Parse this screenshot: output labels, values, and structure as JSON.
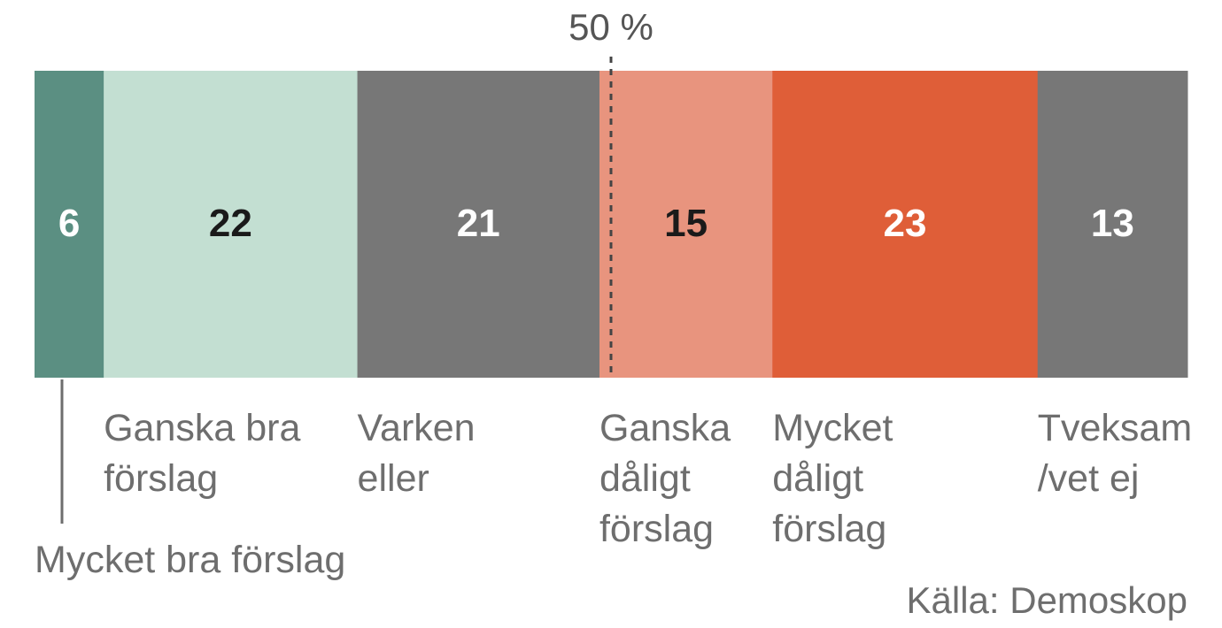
{
  "chart_data": {
    "type": "bar",
    "orientation": "horizontal-stacked-100",
    "categories": [
      "Mycket bra förslag",
      "Ganska bra förslag",
      "Varken eller",
      "Ganska dåligt förslag",
      "Mycket dåligt förslag",
      "Tveksam /vet ej"
    ],
    "label_lines": [
      [
        "Mycket bra förslag"
      ],
      [
        "Ganska bra",
        "förslag"
      ],
      [
        "Varken",
        "eller"
      ],
      [
        "Ganska",
        "dåligt",
        "förslag"
      ],
      [
        "Mycket",
        "dåligt",
        "förslag"
      ],
      [
        "Tveksam",
        "/vet ej"
      ]
    ],
    "values": [
      6,
      22,
      21,
      15,
      23,
      13
    ],
    "colors": [
      "#5b8f82",
      "#c3dfd2",
      "#777777",
      "#e8947e",
      "#df5e38",
      "#777777"
    ],
    "value_label_colors": [
      "#ffffff",
      "#1a1a1a",
      "#ffffff",
      "#1a1a1a",
      "#ffffff",
      "#ffffff"
    ],
    "reference_line": {
      "value": 50,
      "label": "50 %"
    },
    "xlim": [
      0,
      100
    ],
    "source": "Källa: Demoskop"
  }
}
